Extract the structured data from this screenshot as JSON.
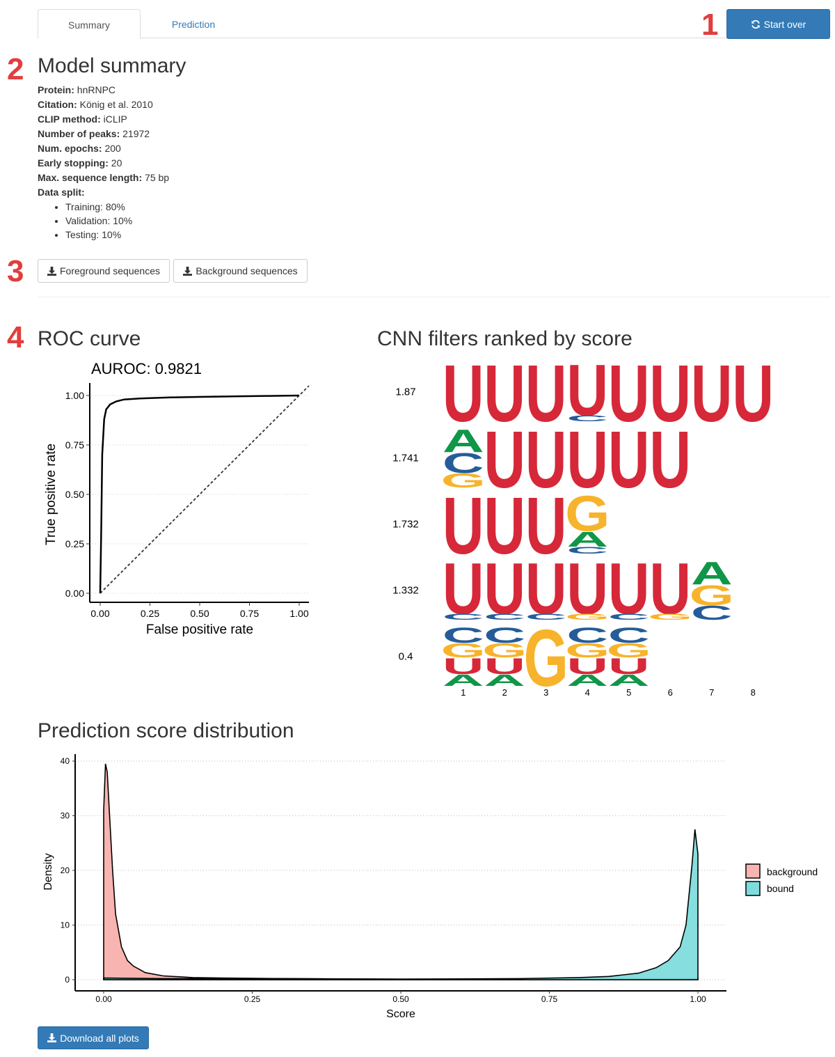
{
  "tabs": [
    {
      "label": "Summary",
      "active": true
    },
    {
      "label": "Prediction",
      "active": false
    }
  ],
  "start_over_label": "Start over",
  "markers": [
    "1",
    "2",
    "3",
    "4"
  ],
  "model_summary": {
    "title": "Model summary",
    "fields": [
      {
        "label": "Protein:",
        "value": "hnRNPC"
      },
      {
        "label": "Citation:",
        "value": "König et al. 2010"
      },
      {
        "label": "CLIP method:",
        "value": "iCLIP"
      },
      {
        "label": "Number of peaks:",
        "value": "21972"
      },
      {
        "label": "Num. epochs:",
        "value": "200"
      },
      {
        "label": "Early stopping:",
        "value": "20"
      },
      {
        "label": "Max. sequence length:",
        "value": "75 bp"
      },
      {
        "label": "Data split:",
        "value": ""
      }
    ],
    "split": [
      "Training: 80%",
      "Validation: 10%",
      "Testing: 10%"
    ]
  },
  "downloads": {
    "foreground_label": "Foreground sequences",
    "background_label": "Background sequences",
    "all_plots_label": "Download all plots"
  },
  "colors": {
    "primary": "#337ab7",
    "marker": "#e23d3d",
    "U": "#d62839",
    "A": "#109648",
    "C": "#255c99",
    "G": "#f7b32b",
    "background": "#f8b4b0",
    "bound": "#7fdcdc"
  },
  "roc": {
    "heading": "ROC curve",
    "title": "AUROC: 0.9821",
    "xlabel": "False positive rate",
    "ylabel": "True positive rate",
    "ticks": [
      "0.00",
      "0.25",
      "0.50",
      "0.75",
      "1.00"
    ]
  },
  "cnn": {
    "heading": "CNN filters ranked by score",
    "positions": [
      "1",
      "2",
      "3",
      "4",
      "5",
      "6",
      "7",
      "8"
    ],
    "filters": [
      {
        "score": "1.87",
        "columns": [
          [
            "U"
          ],
          [
            "U"
          ],
          [
            "U"
          ],
          [
            "U",
            "C"
          ],
          [
            "U"
          ],
          [
            "U"
          ],
          [
            "U"
          ],
          [
            "U"
          ]
        ]
      },
      {
        "score": "1.741",
        "columns": [
          [
            "A",
            "C",
            "G"
          ],
          [
            "U"
          ],
          [
            "U"
          ],
          [
            "U"
          ],
          [
            "U"
          ],
          [
            "U"
          ]
        ]
      },
      {
        "score": "1.732",
        "columns": [
          [
            "U"
          ],
          [
            "U"
          ],
          [
            "U"
          ],
          [
            "G",
            "A",
            "C"
          ]
        ]
      },
      {
        "score": "1.332",
        "columns": [
          [
            "U",
            "C"
          ],
          [
            "U",
            "C"
          ],
          [
            "U",
            "C"
          ],
          [
            "U",
            "G"
          ],
          [
            "U",
            "C"
          ],
          [
            "U",
            "G"
          ],
          [
            "A",
            "G",
            "C"
          ]
        ]
      },
      {
        "score": "0.4",
        "columns": [
          [
            "C",
            "G",
            "U",
            "A"
          ],
          [
            "C",
            "G",
            "U",
            "A"
          ],
          [
            "G"
          ],
          [
            "C",
            "G",
            "U",
            "A"
          ],
          [
            "C",
            "G",
            "U",
            "A"
          ]
        ]
      }
    ]
  },
  "distribution": {
    "heading": "Prediction score distribution",
    "xlabel": "Score",
    "ylabel": "Density",
    "xticks": [
      "0.00",
      "0.25",
      "0.50",
      "0.75",
      "1.00"
    ],
    "yticks": [
      "0",
      "10",
      "20",
      "30",
      "40"
    ],
    "legend": [
      "background",
      "bound"
    ]
  },
  "chart_data": [
    {
      "type": "line",
      "title": "AUROC: 0.9821",
      "xlabel": "False positive rate",
      "ylabel": "True positive rate",
      "xlim": [
        0,
        1
      ],
      "ylim": [
        0,
        1
      ],
      "series": [
        {
          "x": [
            0,
            0.005,
            0.01,
            0.02,
            0.03,
            0.05,
            0.08,
            0.12,
            0.2,
            0.35,
            0.5,
            0.7,
            0.85,
            1.0
          ],
          "y": [
            0,
            0.3,
            0.7,
            0.88,
            0.93,
            0.955,
            0.97,
            0.98,
            0.985,
            0.99,
            0.993,
            0.996,
            0.998,
            1.0
          ]
        },
        {
          "x": [
            0,
            1
          ],
          "y": [
            0,
            1
          ]
        }
      ]
    },
    {
      "type": "area",
      "xlabel": "Score",
      "ylabel": "Density",
      "xlim": [
        0,
        1
      ],
      "ylim": [
        0,
        40
      ],
      "legend": "right",
      "series": [
        {
          "name": "background",
          "x": [
            0,
            0.003,
            0.006,
            0.01,
            0.015,
            0.02,
            0.03,
            0.04,
            0.05,
            0.07,
            0.1,
            0.15,
            0.2,
            0.3,
            0.5,
            0.7,
            0.9,
            1.0
          ],
          "y": [
            31,
            39.5,
            38,
            30,
            20,
            12,
            6,
            3.5,
            2.5,
            1.3,
            0.7,
            0.4,
            0.3,
            0.2,
            0.1,
            0.1,
            0.2,
            0.2
          ]
        },
        {
          "name": "bound",
          "x": [
            0,
            0.1,
            0.3,
            0.5,
            0.7,
            0.8,
            0.85,
            0.9,
            0.93,
            0.95,
            0.97,
            0.98,
            0.99,
            0.995,
            1.0
          ],
          "y": [
            0.3,
            0.2,
            0.2,
            0.1,
            0.2,
            0.4,
            0.6,
            1.2,
            2.2,
            3.5,
            6,
            10,
            21,
            27.5,
            23
          ]
        }
      ]
    }
  ]
}
